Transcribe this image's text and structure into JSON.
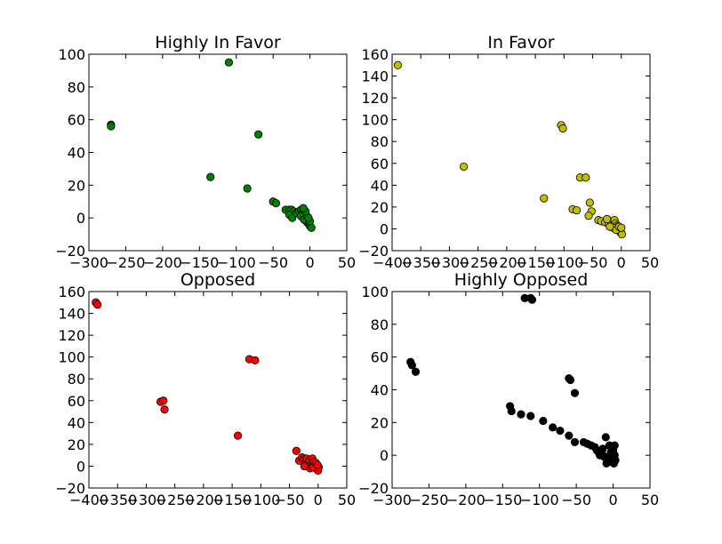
{
  "chart_data": [
    {
      "type": "scatter",
      "title": "Highly In Favor",
      "color": "#007f00",
      "xlim": [
        -300,
        50
      ],
      "ylim": [
        -20,
        100
      ],
      "xticks": [
        -300,
        -250,
        -200,
        -150,
        -100,
        -50,
        0,
        50
      ],
      "yticks": [
        -20,
        0,
        20,
        40,
        60,
        80,
        100
      ],
      "grid": false,
      "points": [
        [
          -110,
          95
        ],
        [
          -270,
          57
        ],
        [
          -270,
          56
        ],
        [
          -70,
          51
        ],
        [
          -135,
          25
        ],
        [
          -85,
          18
        ],
        [
          -50,
          10
        ],
        [
          -46,
          9
        ],
        [
          -33,
          5
        ],
        [
          -28,
          5
        ],
        [
          -25,
          5
        ],
        [
          -22,
          4
        ],
        [
          -28,
          2
        ],
        [
          -24,
          0
        ],
        [
          -18,
          3
        ],
        [
          -15,
          4
        ],
        [
          -12,
          5
        ],
        [
          -10,
          3
        ],
        [
          -8,
          2
        ],
        [
          -6,
          0
        ],
        [
          -5,
          -2
        ],
        [
          -3,
          -3
        ],
        [
          -1,
          -4
        ],
        [
          0,
          -5
        ],
        [
          2,
          -6
        ],
        [
          -12,
          1
        ],
        [
          -8,
          -1
        ],
        [
          -4,
          1
        ],
        [
          0,
          -2
        ],
        [
          -2,
          0
        ],
        [
          -6,
          4
        ],
        [
          -9,
          6
        ]
      ]
    },
    {
      "type": "scatter",
      "title": "In Favor",
      "color": "#bfbf00",
      "xlim": [
        -400,
        50
      ],
      "ylim": [
        -20,
        160
      ],
      "xticks": [
        -400,
        -350,
        -300,
        -250,
        -200,
        -150,
        -100,
        -50,
        0,
        50
      ],
      "yticks": [
        -20,
        0,
        20,
        40,
        60,
        80,
        100,
        120,
        140,
        160
      ],
      "grid": false,
      "points": [
        [
          -390,
          150
        ],
        [
          -275,
          57
        ],
        [
          -105,
          95
        ],
        [
          -102,
          92
        ],
        [
          -135,
          28
        ],
        [
          -85,
          18
        ],
        [
          -78,
          17
        ],
        [
          -72,
          47
        ],
        [
          -62,
          47
        ],
        [
          -55,
          24
        ],
        [
          -52,
          16
        ],
        [
          -57,
          12
        ],
        [
          -40,
          8
        ],
        [
          -35,
          7
        ],
        [
          -28,
          6
        ],
        [
          -22,
          5
        ],
        [
          -18,
          4
        ],
        [
          -15,
          3
        ],
        [
          -12,
          8
        ],
        [
          -10,
          5
        ],
        [
          -8,
          3
        ],
        [
          -6,
          2
        ],
        [
          -5,
          0
        ],
        [
          -3,
          -2
        ],
        [
          -2,
          -3
        ],
        [
          0,
          -4
        ],
        [
          1,
          -5
        ],
        [
          -14,
          1
        ],
        [
          -9,
          -1
        ],
        [
          -4,
          2
        ],
        [
          0,
          1
        ],
        [
          -20,
          2
        ],
        [
          -25,
          9
        ]
      ]
    },
    {
      "type": "scatter",
      "title": "Opposed",
      "color": "#ff0000",
      "xlim": [
        -400,
        50
      ],
      "ylim": [
        -20,
        160
      ],
      "xticks": [
        -400,
        -350,
        -300,
        -250,
        -200,
        -150,
        -100,
        -50,
        0,
        50
      ],
      "yticks": [
        -20,
        0,
        20,
        40,
        60,
        80,
        100,
        120,
        140,
        160
      ],
      "grid": false,
      "points": [
        [
          -388,
          150
        ],
        [
          -385,
          148
        ],
        [
          -275,
          59
        ],
        [
          -270,
          60
        ],
        [
          -268,
          52
        ],
        [
          -120,
          98
        ],
        [
          -110,
          97
        ],
        [
          -140,
          28
        ],
        [
          -38,
          14
        ],
        [
          -33,
          5
        ],
        [
          -28,
          8
        ],
        [
          -25,
          6
        ],
        [
          -22,
          3
        ],
        [
          -20,
          7
        ],
        [
          -18,
          2
        ],
        [
          -15,
          5
        ],
        [
          -12,
          1
        ],
        [
          -10,
          7
        ],
        [
          -8,
          4
        ],
        [
          -6,
          0
        ],
        [
          -5,
          2
        ],
        [
          -3,
          -2
        ],
        [
          -2,
          -3
        ],
        [
          0,
          -4
        ],
        [
          1,
          -1
        ],
        [
          -14,
          -2
        ],
        [
          -9,
          -1
        ],
        [
          -4,
          3
        ],
        [
          -1,
          1
        ],
        [
          -24,
          0
        ]
      ]
    },
    {
      "type": "scatter",
      "title": "Highly Opposed",
      "color": "#000000",
      "xlim": [
        -300,
        50
      ],
      "ylim": [
        -20,
        100
      ],
      "xticks": [
        -300,
        -250,
        -200,
        -150,
        -100,
        -50,
        0,
        50
      ],
      "yticks": [
        -20,
        0,
        20,
        40,
        60,
        80,
        100
      ],
      "grid": false,
      "points": [
        [
          -120,
          96
        ],
        [
          -112,
          96
        ],
        [
          -110,
          95
        ],
        [
          -275,
          57
        ],
        [
          -273,
          55
        ],
        [
          -268,
          51
        ],
        [
          -60,
          47
        ],
        [
          -58,
          46
        ],
        [
          -52,
          38
        ],
        [
          -140,
          30
        ],
        [
          -138,
          27
        ],
        [
          -125,
          25
        ],
        [
          -112,
          24
        ],
        [
          -95,
          21
        ],
        [
          -82,
          17
        ],
        [
          -72,
          15
        ],
        [
          -60,
          12
        ],
        [
          -52,
          8
        ],
        [
          -40,
          8
        ],
        [
          -35,
          7
        ],
        [
          -30,
          6
        ],
        [
          -25,
          5
        ],
        [
          -22,
          3
        ],
        [
          -20,
          2
        ],
        [
          -18,
          0
        ],
        [
          -15,
          1
        ],
        [
          -12,
          -1
        ],
        [
          -10,
          11
        ],
        [
          -8,
          -3
        ],
        [
          -6,
          -4
        ],
        [
          -5,
          6
        ],
        [
          -3,
          2
        ],
        [
          -2,
          -2
        ],
        [
          0,
          -4
        ],
        [
          1,
          -5
        ],
        [
          2,
          0
        ],
        [
          3,
          -3
        ],
        [
          -14,
          4
        ],
        [
          -9,
          -5
        ],
        [
          -4,
          0
        ],
        [
          0,
          3
        ],
        [
          2,
          6
        ]
      ]
    }
  ]
}
